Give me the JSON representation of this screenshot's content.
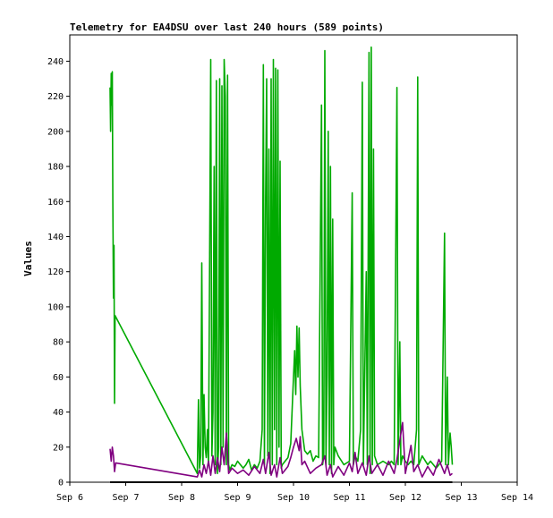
{
  "chart_data": {
    "type": "line",
    "title": "Telemetry for EA4DSU over last 240 hours (589 points)",
    "xlabel": "",
    "ylabel": "Values",
    "x_ticks": [
      "Sep 6",
      "Sep 7",
      "Sep 8",
      "Sep 9",
      "Sep 10",
      "Sep 11",
      "Sep 12",
      "Sep 13",
      "Sep 14"
    ],
    "x_unit": "days after Sep 6 00:00",
    "xlim": [
      0,
      8
    ],
    "ylim": [
      0,
      255
    ],
    "y_ticks": [
      0,
      20,
      40,
      60,
      80,
      100,
      120,
      140,
      160,
      180,
      200,
      220,
      240
    ],
    "grid": false,
    "legend": "none",
    "series": [
      {
        "color": "#00aa00",
        "points": [
          [
            0.72,
            225
          ],
          [
            0.73,
            200
          ],
          [
            0.74,
            233
          ],
          [
            0.75,
            215
          ],
          [
            0.76,
            234
          ],
          [
            0.77,
            160
          ],
          [
            0.78,
            105
          ],
          [
            0.79,
            135
          ],
          [
            0.8,
            45
          ],
          [
            0.81,
            95
          ],
          [
            2.28,
            5
          ],
          [
            2.3,
            47
          ],
          [
            2.32,
            8
          ],
          [
            2.34,
            15
          ],
          [
            2.36,
            125
          ],
          [
            2.38,
            10
          ],
          [
            2.4,
            50
          ],
          [
            2.42,
            20
          ],
          [
            2.44,
            14
          ],
          [
            2.46,
            30
          ],
          [
            2.48,
            10
          ],
          [
            2.5,
            130
          ],
          [
            2.52,
            241
          ],
          [
            2.54,
            15
          ],
          [
            2.56,
            40
          ],
          [
            2.58,
            180
          ],
          [
            2.6,
            10
          ],
          [
            2.62,
            229
          ],
          [
            2.64,
            5
          ],
          [
            2.66,
            20
          ],
          [
            2.68,
            230
          ],
          [
            2.7,
            10
          ],
          [
            2.72,
            226
          ],
          [
            2.74,
            20
          ],
          [
            2.76,
            241
          ],
          [
            2.78,
            220
          ],
          [
            2.8,
            10
          ],
          [
            2.82,
            232
          ],
          [
            2.84,
            10
          ],
          [
            2.86,
            7
          ],
          [
            2.9,
            10
          ],
          [
            2.95,
            9
          ],
          [
            3.0,
            12
          ],
          [
            3.05,
            10
          ],
          [
            3.1,
            8
          ],
          [
            3.15,
            10
          ],
          [
            3.2,
            13
          ],
          [
            3.25,
            7
          ],
          [
            3.3,
            10
          ],
          [
            3.35,
            8
          ],
          [
            3.4,
            12
          ],
          [
            3.44,
            30
          ],
          [
            3.46,
            238
          ],
          [
            3.48,
            10
          ],
          [
            3.5,
            160
          ],
          [
            3.52,
            230
          ],
          [
            3.54,
            15
          ],
          [
            3.56,
            190
          ],
          [
            3.58,
            5
          ],
          [
            3.6,
            230
          ],
          [
            3.62,
            10
          ],
          [
            3.64,
            241
          ],
          [
            3.66,
            30
          ],
          [
            3.68,
            236
          ],
          [
            3.7,
            10
          ],
          [
            3.72,
            235
          ],
          [
            3.74,
            20
          ],
          [
            3.76,
            183
          ],
          [
            3.78,
            8
          ],
          [
            3.8,
            10
          ],
          [
            3.85,
            12
          ],
          [
            3.9,
            14
          ],
          [
            3.95,
            22
          ],
          [
            4.0,
            60
          ],
          [
            4.02,
            75
          ],
          [
            4.04,
            50
          ],
          [
            4.06,
            89
          ],
          [
            4.08,
            60
          ],
          [
            4.1,
            88
          ],
          [
            4.12,
            55
          ],
          [
            4.15,
            30
          ],
          [
            4.2,
            18
          ],
          [
            4.25,
            16
          ],
          [
            4.3,
            18
          ],
          [
            4.35,
            12
          ],
          [
            4.4,
            15
          ],
          [
            4.45,
            14
          ],
          [
            4.5,
            215
          ],
          [
            4.52,
            10
          ],
          [
            4.54,
            15
          ],
          [
            4.56,
            246
          ],
          [
            4.58,
            10
          ],
          [
            4.6,
            60
          ],
          [
            4.62,
            200
          ],
          [
            4.64,
            10
          ],
          [
            4.66,
            180
          ],
          [
            4.68,
            5
          ],
          [
            4.7,
            150
          ],
          [
            4.72,
            10
          ],
          [
            4.74,
            20
          ],
          [
            4.8,
            15
          ],
          [
            4.9,
            10
          ],
          [
            5.0,
            12
          ],
          [
            5.05,
            165
          ],
          [
            5.07,
            10
          ],
          [
            5.1,
            15
          ],
          [
            5.15,
            12
          ],
          [
            5.2,
            30
          ],
          [
            5.23,
            228
          ],
          [
            5.25,
            10
          ],
          [
            5.3,
            120
          ],
          [
            5.32,
            10
          ],
          [
            5.35,
            245
          ],
          [
            5.37,
            5
          ],
          [
            5.39,
            248
          ],
          [
            5.41,
            10
          ],
          [
            5.43,
            190
          ],
          [
            5.45,
            15
          ],
          [
            5.5,
            10
          ],
          [
            5.6,
            12
          ],
          [
            5.7,
            10
          ],
          [
            5.75,
            12
          ],
          [
            5.8,
            10
          ],
          [
            5.85,
            225
          ],
          [
            5.87,
            10
          ],
          [
            5.9,
            80
          ],
          [
            5.92,
            10
          ],
          [
            5.95,
            15
          ],
          [
            6.0,
            12
          ],
          [
            6.05,
            10
          ],
          [
            6.1,
            12
          ],
          [
            6.15,
            10
          ],
          [
            6.2,
            30
          ],
          [
            6.22,
            231
          ],
          [
            6.24,
            10
          ],
          [
            6.3,
            15
          ],
          [
            6.4,
            10
          ],
          [
            6.45,
            12
          ],
          [
            6.5,
            10
          ],
          [
            6.55,
            8
          ],
          [
            6.6,
            10
          ],
          [
            6.65,
            12
          ],
          [
            6.7,
            142
          ],
          [
            6.72,
            10
          ],
          [
            6.75,
            60
          ],
          [
            6.77,
            10
          ],
          [
            6.8,
            28
          ],
          [
            6.82,
            20
          ],
          [
            6.84,
            10
          ]
        ]
      },
      {
        "color": "#800080",
        "points": [
          [
            0.72,
            19
          ],
          [
            0.74,
            12
          ],
          [
            0.76,
            20
          ],
          [
            0.78,
            15
          ],
          [
            0.8,
            6
          ],
          [
            0.82,
            11
          ],
          [
            2.28,
            3
          ],
          [
            2.32,
            7
          ],
          [
            2.36,
            3
          ],
          [
            2.4,
            10
          ],
          [
            2.44,
            5
          ],
          [
            2.48,
            12
          ],
          [
            2.52,
            4
          ],
          [
            2.56,
            15
          ],
          [
            2.6,
            5
          ],
          [
            2.64,
            14
          ],
          [
            2.68,
            6
          ],
          [
            2.72,
            20
          ],
          [
            2.76,
            10
          ],
          [
            2.8,
            28
          ],
          [
            2.84,
            5
          ],
          [
            2.9,
            8
          ],
          [
            3.0,
            5
          ],
          [
            3.1,
            7
          ],
          [
            3.2,
            4
          ],
          [
            3.3,
            9
          ],
          [
            3.4,
            5
          ],
          [
            3.46,
            13
          ],
          [
            3.5,
            5
          ],
          [
            3.56,
            17
          ],
          [
            3.6,
            4
          ],
          [
            3.66,
            10
          ],
          [
            3.7,
            3
          ],
          [
            3.76,
            14
          ],
          [
            3.8,
            5
          ],
          [
            3.9,
            9
          ],
          [
            3.95,
            14
          ],
          [
            4.0,
            20
          ],
          [
            4.05,
            25
          ],
          [
            4.1,
            18
          ],
          [
            4.12,
            26
          ],
          [
            4.15,
            10
          ],
          [
            4.2,
            12
          ],
          [
            4.3,
            5
          ],
          [
            4.4,
            8
          ],
          [
            4.5,
            10
          ],
          [
            4.56,
            15
          ],
          [
            4.6,
            4
          ],
          [
            4.66,
            10
          ],
          [
            4.7,
            3
          ],
          [
            4.8,
            9
          ],
          [
            4.9,
            4
          ],
          [
            5.0,
            11
          ],
          [
            5.05,
            6
          ],
          [
            5.1,
            17
          ],
          [
            5.15,
            5
          ],
          [
            5.23,
            11
          ],
          [
            5.3,
            4
          ],
          [
            5.35,
            15
          ],
          [
            5.4,
            5
          ],
          [
            5.5,
            10
          ],
          [
            5.6,
            4
          ],
          [
            5.7,
            12
          ],
          [
            5.8,
            5
          ],
          [
            5.85,
            13
          ],
          [
            5.95,
            34
          ],
          [
            6.0,
            5
          ],
          [
            6.1,
            21
          ],
          [
            6.15,
            6
          ],
          [
            6.22,
            10
          ],
          [
            6.3,
            3
          ],
          [
            6.4,
            9
          ],
          [
            6.5,
            4
          ],
          [
            6.6,
            13
          ],
          [
            6.7,
            5
          ],
          [
            6.75,
            10
          ],
          [
            6.8,
            4
          ],
          [
            6.84,
            5
          ]
        ]
      },
      {
        "color": "#000000",
        "points": [
          [
            0.72,
            0
          ],
          [
            6.84,
            0
          ]
        ]
      }
    ]
  }
}
